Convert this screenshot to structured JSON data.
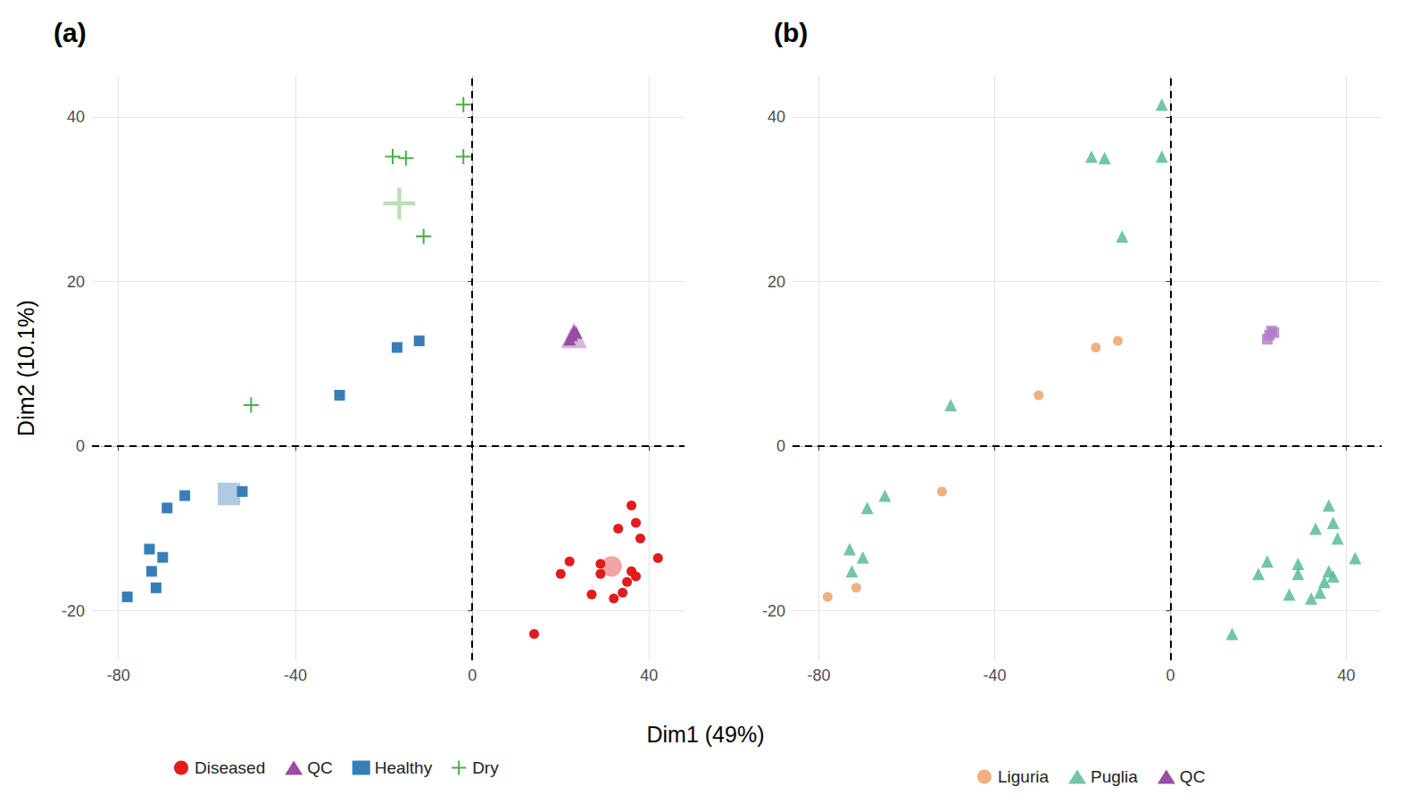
{
  "chart_data": [
    {
      "type": "scatter",
      "title": "(a)",
      "x_label": "Dim1 (49%)",
      "y_label": "Dim2 (10.1%)",
      "xlim": [
        -86,
        48
      ],
      "xticks": [
        -80,
        -40,
        0,
        40
      ],
      "ylim": [
        -26,
        45
      ],
      "yticks": [
        -20,
        0,
        20,
        40
      ],
      "grid": true,
      "legend": "bottom",
      "reference_lines": [
        {
          "axis": "x",
          "value": 0
        },
        {
          "axis": "y",
          "value": 0
        }
      ],
      "series": [
        {
          "name": "Diseased",
          "color": "#e41a1c",
          "marker": "circle",
          "values": [
            [
              36,
              -7.2
            ],
            [
              37,
              -9.3
            ],
            [
              38,
              -11.2
            ],
            [
              33,
              -10
            ],
            [
              22,
              -14
            ],
            [
              20,
              -15.5
            ],
            [
              29,
              -14.3
            ],
            [
              36,
              -15.2
            ],
            [
              37,
              -15.8
            ],
            [
              35,
              -16.5
            ],
            [
              29,
              -15.5
            ],
            [
              27,
              -18
            ],
            [
              34,
              -17.8
            ],
            [
              32,
              -18.5
            ],
            [
              42,
              -13.6
            ],
            [
              14,
              -22.8
            ]
          ],
          "centroid": [
            31.5,
            -14.6
          ]
        },
        {
          "name": "QC",
          "color": "#984ea3",
          "marker": "triangle",
          "values": [
            [
              22,
              13
            ],
            [
              23,
              14
            ],
            [
              22.5,
              13.5
            ],
            [
              23.5,
              13.8
            ]
          ],
          "centroid": [
            23,
            13.5
          ]
        },
        {
          "name": "Healthy",
          "color": "#377eb8",
          "marker": "square",
          "values": [
            [
              -17,
              12
            ],
            [
              -12,
              12.8
            ],
            [
              -30,
              6.2
            ],
            [
              -52,
              -5.5
            ],
            [
              -65,
              -6
            ],
            [
              -69,
              -7.5
            ],
            [
              -73,
              -12.5
            ],
            [
              -70,
              -13.5
            ],
            [
              -72.5,
              -15.2
            ],
            [
              -71.5,
              -17.2
            ],
            [
              -78,
              -18.3
            ]
          ],
          "centroid": [
            -55,
            -5.8
          ]
        },
        {
          "name": "Dry",
          "color": "#4daf4a",
          "marker": "plus",
          "values": [
            [
              -2,
              41.5
            ],
            [
              -18,
              35.2
            ],
            [
              -15,
              35
            ],
            [
              -2,
              35.2
            ],
            [
              -11,
              25.5
            ],
            [
              -50,
              5
            ]
          ],
          "centroid": [
            -16.5,
            29.5
          ]
        }
      ]
    },
    {
      "type": "scatter",
      "title": "(b)",
      "xlim": [
        -86,
        48
      ],
      "xticks": [
        -80,
        -40,
        0,
        40
      ],
      "ylim": [
        -26,
        45
      ],
      "yticks": [
        -20,
        0,
        20,
        40
      ],
      "grid": true,
      "legend": "bottom",
      "reference_lines": [
        {
          "axis": "x",
          "value": 0
        },
        {
          "axis": "y",
          "value": 0
        }
      ],
      "series": [
        {
          "name": "Liguria",
          "color": "#ec9c62",
          "marker": "circle",
          "values": [
            [
              -17,
              12
            ],
            [
              -12,
              12.8
            ],
            [
              -30,
              6.2
            ],
            [
              -52,
              -5.5
            ],
            [
              -71.5,
              -17.2
            ],
            [
              -78,
              -18.3
            ]
          ]
        },
        {
          "name": "Puglia",
          "color": "#4fb88e",
          "marker": "triangle",
          "values": [
            [
              -2,
              41.5
            ],
            [
              -18,
              35.2
            ],
            [
              -15,
              35
            ],
            [
              -2,
              35.2
            ],
            [
              -11,
              25.5
            ],
            [
              -50,
              5
            ],
            [
              -65,
              -6
            ],
            [
              -69,
              -7.5
            ],
            [
              -73,
              -12.5
            ],
            [
              -70,
              -13.5
            ],
            [
              -72.5,
              -15.2
            ],
            [
              36,
              -7.2
            ],
            [
              37,
              -9.3
            ],
            [
              38,
              -11.2
            ],
            [
              33,
              -10
            ],
            [
              22,
              -14
            ],
            [
              20,
              -15.5
            ],
            [
              29,
              -14.3
            ],
            [
              36,
              -15.2
            ],
            [
              37,
              -15.8
            ],
            [
              35,
              -16.5
            ],
            [
              29,
              -15.5
            ],
            [
              27,
              -18
            ],
            [
              34,
              -17.8
            ],
            [
              32,
              -18.5
            ],
            [
              42,
              -13.6
            ],
            [
              14,
              -22.8
            ]
          ]
        },
        {
          "name": "QC",
          "color": "#b07cc6",
          "marker": "square",
          "values": [
            [
              22,
              13
            ],
            [
              23,
              14
            ],
            [
              22.5,
              13.5
            ],
            [
              23.5,
              13.8
            ]
          ]
        }
      ]
    }
  ]
}
